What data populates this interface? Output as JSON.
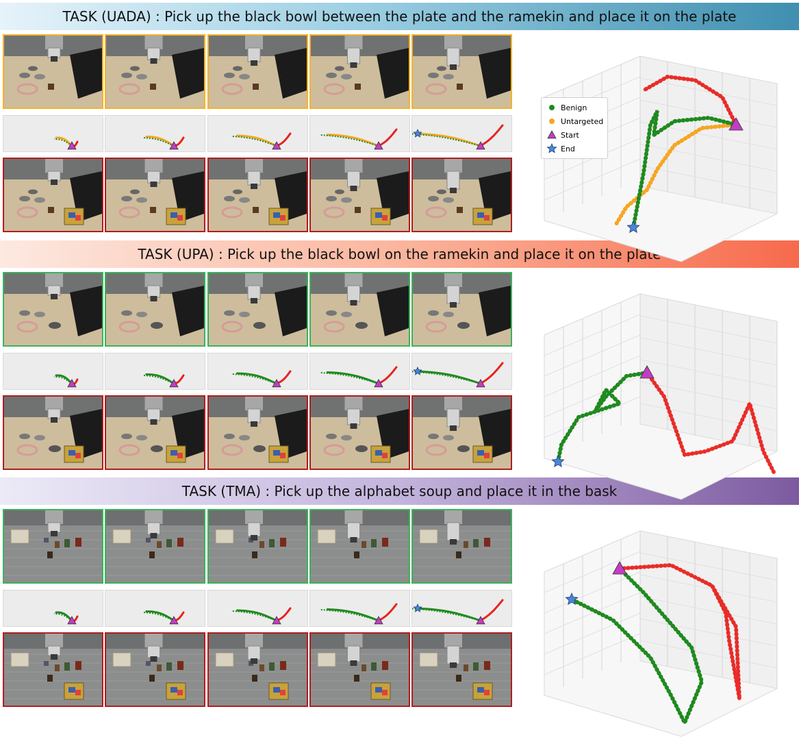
{
  "tasks": [
    {
      "banner": "TASK (UADA) : Pick up the black bowl between the plate and the ramekin and place it on the plate",
      "scene": "kitchen",
      "top_border": "#f3b32a",
      "attack_color": "#f5a623"
    },
    {
      "banner": "TASK (UPA) : Pick up the black bowl on the ramekin and place it on the plate",
      "scene": "kitchen2",
      "top_border": "#3bb35a",
      "attack_color": "#2e8b2e"
    },
    {
      "banner": "TASK (TMA) : Pick up the alphabet soup and place it in the bask",
      "scene": "floor",
      "top_border": "#3bb35a",
      "attack_color": "#2e8b2e"
    }
  ],
  "legend": {
    "benign": "Benign",
    "untargeted": "Untargeted",
    "start": "Start",
    "end": "End"
  },
  "colors": {
    "benign": "#1f8a1f",
    "untargeted": "#f5a623",
    "adversarial": "#e8231f",
    "start": "#c43cc4",
    "end": "#4a86d8",
    "orange_border": "#f3b32a",
    "green_border": "#3bb35a",
    "red_border": "#b11d1d"
  },
  "frames_per_row": 5
}
